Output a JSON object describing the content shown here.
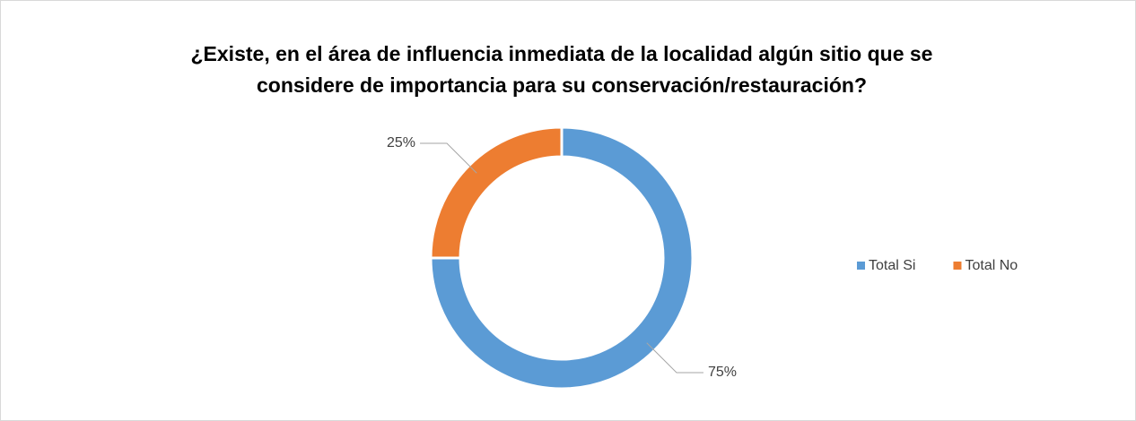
{
  "chart_data": {
    "type": "pie",
    "title": [
      "¿Existe, en el área de influencia inmediata de la localidad algún sitio que se",
      "considere de importancia para su conservación/restauración?"
    ],
    "categories": [
      "Total Si",
      "Total No"
    ],
    "values": [
      75,
      25
    ],
    "value_labels": [
      "75%",
      "25%"
    ],
    "colors": [
      "#5b9bd5",
      "#ed7d31"
    ],
    "donut": true,
    "legend": "right"
  }
}
